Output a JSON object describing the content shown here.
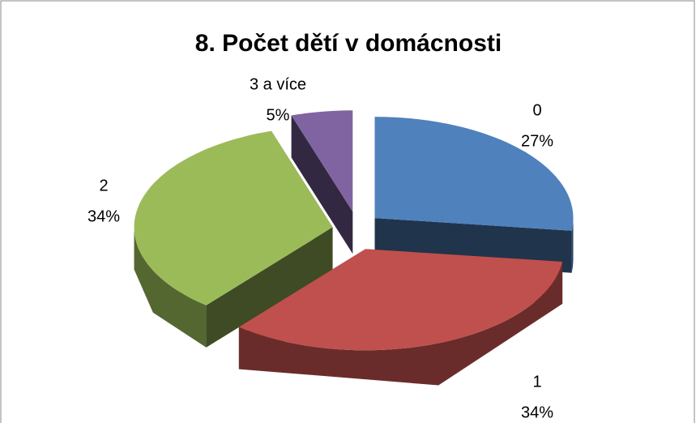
{
  "chart_data": {
    "type": "pie",
    "title": "8. Počet dětí v domácnosti",
    "categories": [
      "0",
      "1",
      "2",
      "3 a více"
    ],
    "values": [
      27,
      34,
      34,
      5
    ],
    "value_labels": [
      "27%",
      "34%",
      "34%",
      "5%"
    ],
    "colors": [
      "#4f81bd",
      "#c0504d",
      "#9bbb59",
      "#8064a2"
    ]
  }
}
